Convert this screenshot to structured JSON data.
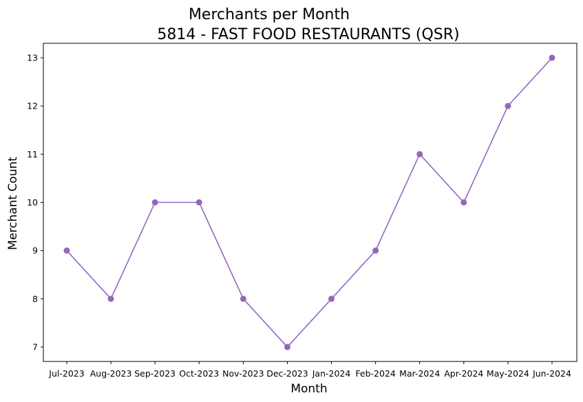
{
  "chart_data": {
    "type": "line",
    "title": "Merchants per Month",
    "subtitle": "5814 - FAST FOOD RESTAURANTS (QSR)",
    "xlabel": "Month",
    "ylabel": "Merchant Count",
    "categories": [
      "Jul-2023",
      "Aug-2023",
      "Sep-2023",
      "Oct-2023",
      "Nov-2023",
      "Dec-2023",
      "Jan-2024",
      "Feb-2024",
      "Mar-2024",
      "Apr-2024",
      "May-2024",
      "Jun-2024"
    ],
    "values": [
      9,
      8,
      10,
      10,
      8,
      7,
      8,
      9,
      11,
      10,
      12,
      13
    ],
    "yticks": [
      "7",
      "8",
      "9",
      "10",
      "11",
      "12",
      "13"
    ],
    "ylim": [
      6.7,
      13.3
    ],
    "grid": false,
    "line_color": "#9467bd",
    "marker": "circle"
  }
}
